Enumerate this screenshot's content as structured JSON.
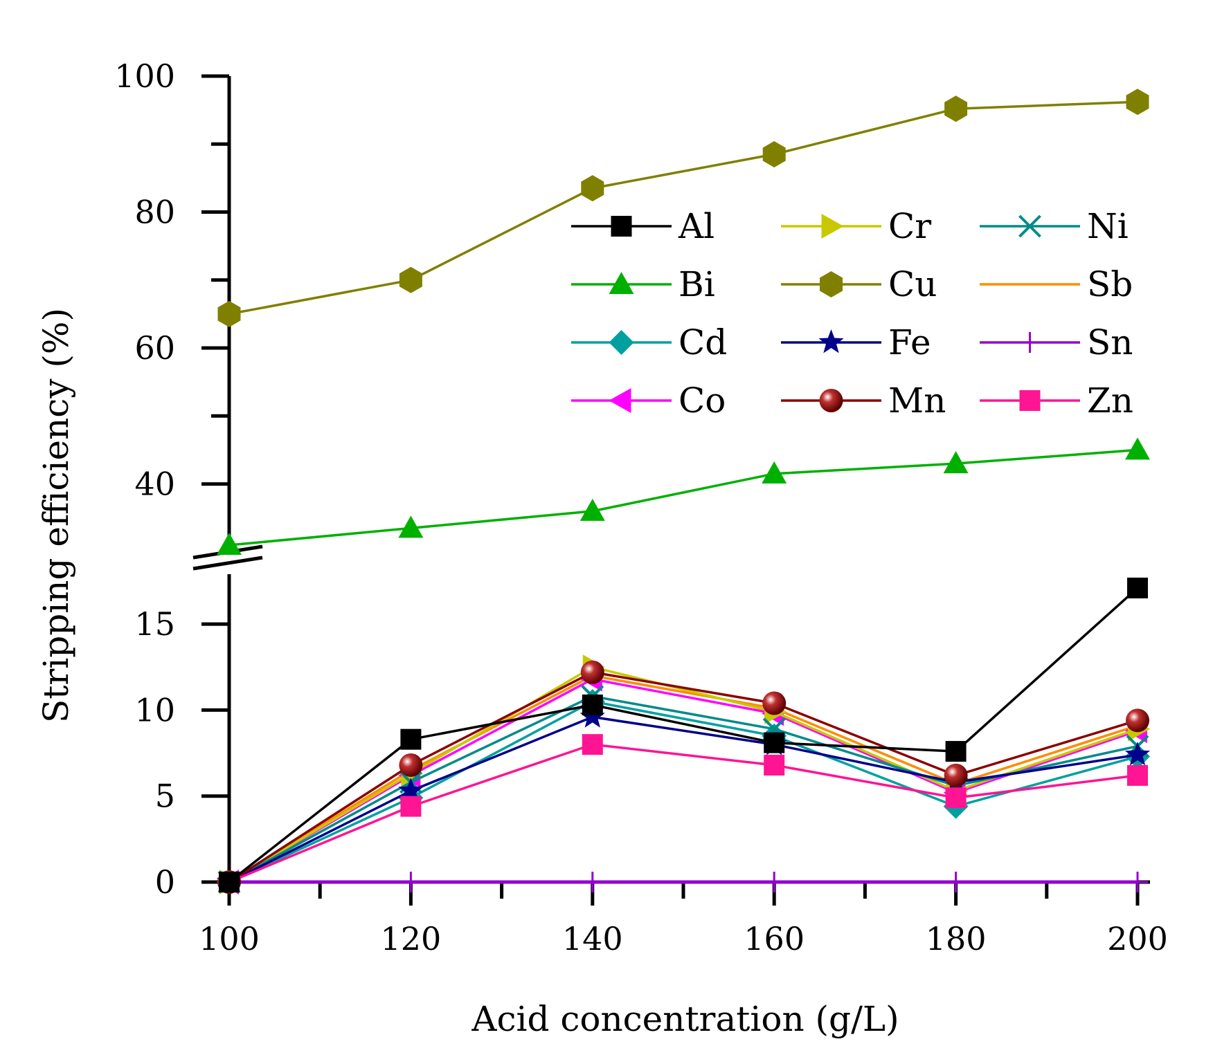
{
  "chart_data": {
    "type": "line",
    "xlabel": "Acid concentration (g/L)",
    "ylabel": "Stripping efficiency (%)",
    "x": [
      100,
      120,
      140,
      160,
      180,
      200
    ],
    "xlim": [
      100,
      200
    ],
    "x_ticks": [
      "100",
      "120",
      "140",
      "160",
      "180",
      "200"
    ],
    "y_axis_break": true,
    "ylim_lower": [
      0,
      17.5
    ],
    "ylim_upper": [
      31,
      100
    ],
    "y_ticks_lower": [
      "0",
      "5",
      "10",
      "15"
    ],
    "y_ticks_upper": [
      "40",
      "60",
      "80",
      "100"
    ],
    "grid": false,
    "legend_position": "upper-right, inside plot, 3 columns",
    "series": [
      {
        "name": "Al",
        "color": "#000000",
        "marker": "square",
        "values": [
          0,
          8.3,
          10.3,
          8.1,
          7.6,
          17.1
        ]
      },
      {
        "name": "Bi",
        "color": "#00b000",
        "marker": "triangle-up",
        "values": [
          31,
          33.5,
          36,
          41.5,
          43,
          45
        ]
      },
      {
        "name": "Cd",
        "color": "#00a0a0",
        "marker": "diamond",
        "values": [
          0,
          4.9,
          10.5,
          8.5,
          4.4,
          7.3
        ]
      },
      {
        "name": "Co",
        "color": "#ff00ff",
        "marker": "triangle-left",
        "values": [
          0,
          6.2,
          11.8,
          9.8,
          5.2,
          8.8
        ]
      },
      {
        "name": "Cr",
        "color": "#c8c800",
        "marker": "triangle-right",
        "values": [
          0,
          6.3,
          12.5,
          9.9,
          5.3,
          8.9
        ]
      },
      {
        "name": "Cu",
        "color": "#808000",
        "marker": "hexagon",
        "values": [
          65,
          70,
          83.5,
          88.5,
          95.2,
          96.2
        ]
      },
      {
        "name": "Fe",
        "color": "#00008b",
        "marker": "star",
        "values": [
          0,
          5.3,
          9.6,
          8.0,
          5.8,
          7.4
        ]
      },
      {
        "name": "Mn",
        "color": "#8b0000",
        "marker": "sphere",
        "values": [
          0,
          6.8,
          12.2,
          10.4,
          6.2,
          9.4
        ]
      },
      {
        "name": "Ni",
        "color": "#008b8b",
        "marker": "x",
        "values": [
          0,
          5.8,
          10.8,
          8.9,
          5.6,
          7.9
        ]
      },
      {
        "name": "Sb",
        "color": "#ff8c00",
        "marker": "none",
        "values": [
          0,
          6.5,
          12.0,
          10.1,
          5.7,
          9.1
        ]
      },
      {
        "name": "Sn",
        "color": "#9400d3",
        "marker": "plus",
        "values": [
          0,
          0,
          0,
          0,
          0,
          0
        ]
      },
      {
        "name": "Zn",
        "color": "#ff1493",
        "marker": "square",
        "values": [
          0,
          4.4,
          8.0,
          6.8,
          4.9,
          6.2
        ]
      }
    ],
    "legend_order": [
      "Al",
      "Cr",
      "Ni",
      "Bi",
      "Cu",
      "Sb",
      "Cd",
      "Fe",
      "Sn",
      "Co",
      "Mn",
      "Zn"
    ]
  }
}
